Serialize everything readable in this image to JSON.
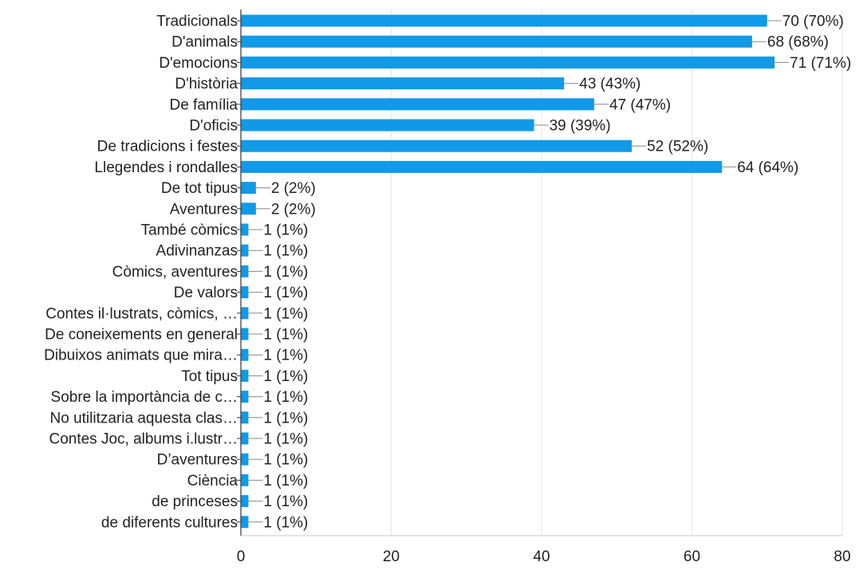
{
  "chart_data": {
    "type": "bar",
    "orientation": "horizontal",
    "categories": [
      "Tradicionals",
      "D'animals",
      "D'emocions",
      "D'història",
      "De família",
      "D'oficis",
      "De tradicions i festes",
      "Llegendes i rondalles",
      "De tot tipus",
      "Aventures",
      "També còmics",
      "Adivinanzas",
      "Còmics, aventures",
      "De valors",
      "Contes il·lustrats, còmics, …",
      "De coneixements en general",
      "Dibuixos animats que mira…",
      "Tot tipus",
      "Sobre la importància de c…",
      "No utilitzaria aquesta clas…",
      "Contes Joc, albums i.lustr…",
      "D’aventures",
      "Ciència",
      "de princeses",
      "de diferents cultures"
    ],
    "values": [
      70,
      68,
      71,
      43,
      47,
      39,
      52,
      64,
      2,
      2,
      1,
      1,
      1,
      1,
      1,
      1,
      1,
      1,
      1,
      1,
      1,
      1,
      1,
      1,
      1
    ],
    "data_labels": [
      "70 (70%)",
      "68 (68%)",
      "71 (71%)",
      "43 (43%)",
      "47 (47%)",
      "39 (39%)",
      "52 (52%)",
      "64 (64%)",
      "2 (2%)",
      "2 (2%)",
      "1 (1%)",
      "1 (1%)",
      "1 (1%)",
      "1 (1%)",
      "1 (1%)",
      "1 (1%)",
      "1 (1%)",
      "1 (1%)",
      "1 (1%)",
      "1 (1%)",
      "1 (1%)",
      "1 (1%)",
      "1 (1%)",
      "1 (1%)",
      "1 (1%)"
    ],
    "xlim": [
      0,
      80
    ],
    "x_ticks": [
      0,
      20,
      40,
      60,
      80
    ],
    "title": "",
    "xlabel": "",
    "ylabel": "",
    "grid": true,
    "bar_color": "#109ae8",
    "grid_color": "#e6e6e6"
  }
}
